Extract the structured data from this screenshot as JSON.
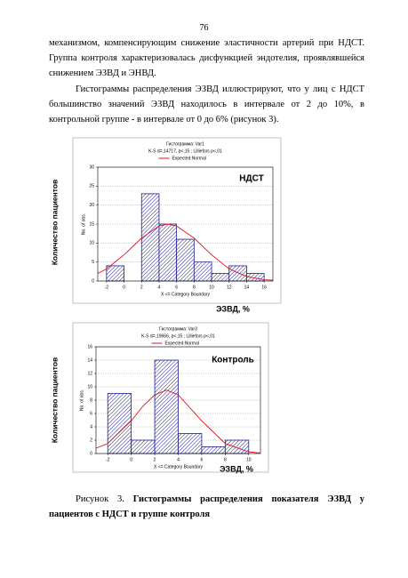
{
  "page_number": "76",
  "paragraphs": [
    "механизмом, компенсирующим снижение эластичности артерий при НДСТ. Группа контроля характеризовалась дисфункцией эндотелия, проявлявшейся снижением ЭЗВД и ЭНВД.",
    "Гистограммы распределения ЭЗВД иллюстрируют, что у лиц с НДСТ большинство значений ЭЗВД находилось в интервале от 2 до 10%, в контрольной группе - в интервале от 0 до 6% (рисунок 3)."
  ],
  "chart_data": [
    {
      "type": "histogram",
      "title": "Гистограмма: Var1",
      "subtitle": "K-S d=,14717, p<,15 ; Lilliefors p<,01",
      "xlabel": "X <= Category Boundary",
      "ylabel": "No. of obs.",
      "outer_ylabel": "Количество пациентов",
      "outer_xlabel": "ЭЗВД, %",
      "annotation": "НДСТ",
      "bins": [
        -2,
        0,
        2,
        4,
        6,
        8,
        10,
        12,
        14,
        16
      ],
      "values": [
        4,
        0,
        23,
        15,
        11,
        5,
        2,
        4,
        2
      ],
      "color": "#1f1f8f",
      "curve": {
        "name": "Expected Normal",
        "color": "#e01020",
        "x": [
          -3,
          -2,
          0,
          2,
          4,
          5,
          6,
          8,
          10,
          12,
          14,
          16,
          17
        ],
        "values": [
          2,
          3.2,
          6.9,
          11.3,
          14.5,
          15,
          14.5,
          11.3,
          6.9,
          3.2,
          1.2,
          0.34,
          0.2
        ]
      },
      "xlim": [
        -3,
        17
      ],
      "xticks": [
        -2,
        0,
        2,
        4,
        6,
        8,
        10,
        12,
        14,
        16
      ],
      "ylim": [
        0,
        30
      ],
      "yticks": [
        0,
        5,
        10,
        15,
        20,
        25,
        30
      ],
      "grid": true
    },
    {
      "type": "histogram",
      "title": "Гистограмма: Var3",
      "subtitle": "K-S d=,19666, p<,15 ; Lilliefors p<,01",
      "xlabel": "X <= Category Boundary",
      "ylabel": "No. of obs.",
      "outer_ylabel": "Количество пациентов",
      "outer_xlabel": "ЭЗВД, %",
      "annotation": "Контроль",
      "bins": [
        -2,
        0,
        2,
        4,
        6,
        8,
        10
      ],
      "values": [
        9,
        2,
        14,
        3,
        1,
        2
      ],
      "color": "#1f1f8f",
      "curve": {
        "name": "Expected Normal",
        "color": "#e01020",
        "x": [
          -3,
          -2,
          0,
          1,
          2,
          3,
          4,
          6,
          8,
          10,
          11
        ],
        "values": [
          0.8,
          1.5,
          4.9,
          7.1,
          8.8,
          9.5,
          8.8,
          4.9,
          1.5,
          0.25,
          0.08
        ]
      },
      "xlim": [
        -3,
        11
      ],
      "xticks": [
        -2,
        0,
        2,
        4,
        6,
        8,
        10
      ],
      "ylim": [
        0,
        16
      ],
      "yticks": [
        0,
        2,
        4,
        6,
        8,
        10,
        12,
        14,
        16
      ],
      "grid": true
    }
  ],
  "caption": {
    "label": "Рисунок 3.",
    "text": "Гистограммы распределения показателя ЭЗВД у пациентов с НДСТ и группе контроля"
  }
}
